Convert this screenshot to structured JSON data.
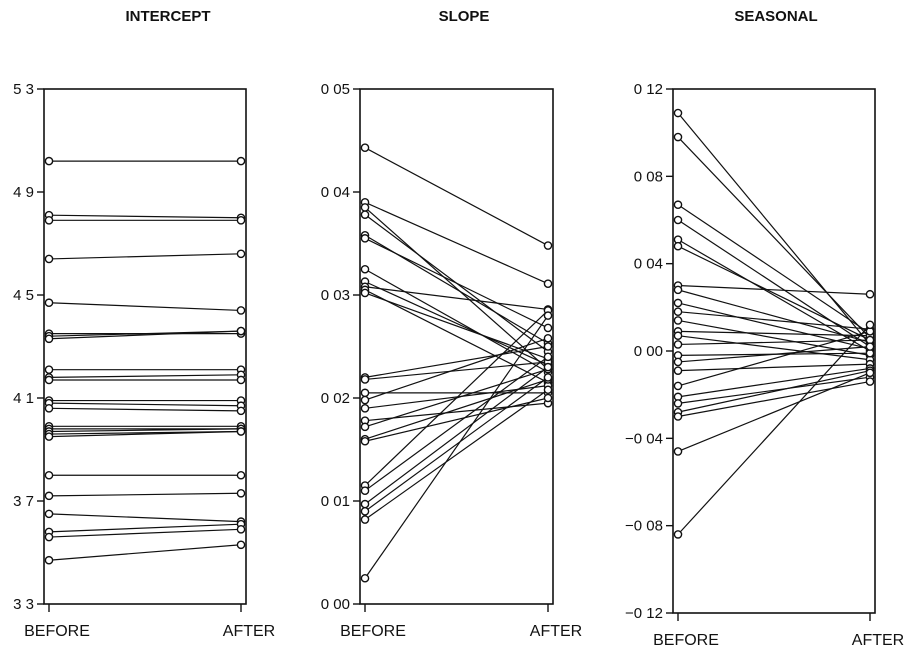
{
  "chart_data": [
    {
      "type": "line",
      "title": "INTERCEPT",
      "categories": [
        "BEFORE",
        "AFTER"
      ],
      "yticks": [
        "5 3",
        "4 9",
        "4 5",
        "4 1",
        "3 7",
        "3 3"
      ],
      "ytick_values": [
        5.3,
        4.9,
        4.5,
        4.1,
        3.7,
        3.3
      ],
      "ylim": [
        3.3,
        5.3
      ],
      "grid": false,
      "series": [
        {
          "values": [
            5.02,
            5.02
          ]
        },
        {
          "values": [
            4.81,
            4.8
          ]
        },
        {
          "values": [
            4.79,
            4.79
          ]
        },
        {
          "values": [
            4.64,
            4.66
          ]
        },
        {
          "values": [
            4.47,
            4.44
          ]
        },
        {
          "values": [
            4.35,
            4.35
          ]
        },
        {
          "values": [
            4.34,
            4.36
          ]
        },
        {
          "values": [
            4.33,
            4.36
          ]
        },
        {
          "values": [
            4.21,
            4.21
          ]
        },
        {
          "values": [
            4.18,
            4.19
          ]
        },
        {
          "values": [
            4.17,
            4.17
          ]
        },
        {
          "values": [
            4.09,
            4.09
          ]
        },
        {
          "values": [
            4.08,
            4.07
          ]
        },
        {
          "values": [
            4.06,
            4.05
          ]
        },
        {
          "values": [
            3.99,
            3.99
          ]
        },
        {
          "values": [
            3.98,
            3.98
          ]
        },
        {
          "values": [
            3.97,
            3.98
          ]
        },
        {
          "values": [
            3.96,
            3.97
          ]
        },
        {
          "values": [
            3.95,
            3.97
          ]
        },
        {
          "values": [
            3.8,
            3.8
          ]
        },
        {
          "values": [
            3.72,
            3.73
          ]
        },
        {
          "values": [
            3.65,
            3.62
          ]
        },
        {
          "values": [
            3.58,
            3.61
          ]
        },
        {
          "values": [
            3.56,
            3.59
          ]
        },
        {
          "values": [
            3.47,
            3.53
          ]
        }
      ]
    },
    {
      "type": "line",
      "title": "SLOPE",
      "categories": [
        "BEFORE",
        "AFTER"
      ],
      "yticks": [
        "0 05",
        "0 04",
        "0 03",
        "0 02",
        "0 01",
        "0 00"
      ],
      "ytick_values": [
        0.05,
        0.04,
        0.03,
        0.02,
        0.01,
        0.0
      ],
      "ylim": [
        0.0,
        0.05
      ],
      "grid": false,
      "series": [
        {
          "values": [
            0.0443,
            0.0348
          ]
        },
        {
          "values": [
            0.039,
            0.0311
          ]
        },
        {
          "values": [
            0.0385,
            0.0228
          ]
        },
        {
          "values": [
            0.0378,
            0.0245
          ]
        },
        {
          "values": [
            0.0358,
            0.0253
          ]
        },
        {
          "values": [
            0.0355,
            0.0268
          ]
        },
        {
          "values": [
            0.0325,
            0.0225
          ]
        },
        {
          "values": [
            0.0313,
            0.0232
          ]
        },
        {
          "values": [
            0.0308,
            0.0286
          ]
        },
        {
          "values": [
            0.0305,
            0.0215
          ]
        },
        {
          "values": [
            0.0302,
            0.0238
          ]
        },
        {
          "values": [
            0.022,
            0.025
          ]
        },
        {
          "values": [
            0.0218,
            0.0235
          ]
        },
        {
          "values": [
            0.0205,
            0.0205
          ]
        },
        {
          "values": [
            0.0198,
            0.0258
          ]
        },
        {
          "values": [
            0.019,
            0.0212
          ]
        },
        {
          "values": [
            0.0178,
            0.0195
          ]
        },
        {
          "values": [
            0.0172,
            0.0228
          ]
        },
        {
          "values": [
            0.016,
            0.0218
          ]
        },
        {
          "values": [
            0.0158,
            0.02
          ]
        },
        {
          "values": [
            0.0115,
            0.0285
          ]
        },
        {
          "values": [
            0.011,
            0.024
          ]
        },
        {
          "values": [
            0.0097,
            0.023
          ]
        },
        {
          "values": [
            0.009,
            0.022
          ]
        },
        {
          "values": [
            0.0082,
            0.0208
          ]
        },
        {
          "values": [
            0.0025,
            0.028
          ]
        }
      ]
    },
    {
      "type": "line",
      "title": "SEASONAL",
      "categories": [
        "BEFORE",
        "AFTER"
      ],
      "yticks": [
        "0 12",
        "0 08",
        "0 04",
        "0 00",
        "−0 04",
        "−0 08",
        "−0 12"
      ],
      "ytick_values": [
        0.12,
        0.08,
        0.04,
        0.0,
        -0.04,
        -0.08,
        -0.12
      ],
      "ylim": [
        -0.12,
        0.12
      ],
      "grid": false,
      "series": [
        {
          "values": [
            0.109,
            0.003
          ]
        },
        {
          "values": [
            0.098,
            0.006
          ]
        },
        {
          "values": [
            0.067,
            0.008
          ]
        },
        {
          "values": [
            0.06,
            0.002
          ]
        },
        {
          "values": [
            0.051,
            0.0
          ]
        },
        {
          "values": [
            0.048,
            0.005
          ]
        },
        {
          "values": [
            0.03,
            0.026
          ]
        },
        {
          "values": [
            0.028,
            0.004
          ]
        },
        {
          "values": [
            0.022,
            0.001
          ]
        },
        {
          "values": [
            0.018,
            0.01
          ]
        },
        {
          "values": [
            0.014,
            -0.002
          ]
        },
        {
          "values": [
            0.009,
            0.007
          ]
        },
        {
          "values": [
            0.007,
            -0.004
          ]
        },
        {
          "values": [
            0.003,
            0.005
          ]
        },
        {
          "values": [
            -0.002,
            -0.001
          ]
        },
        {
          "values": [
            -0.005,
            0.002
          ]
        },
        {
          "values": [
            -0.009,
            -0.006
          ]
        },
        {
          "values": [
            -0.016,
            0.009
          ]
        },
        {
          "values": [
            -0.021,
            -0.008
          ]
        },
        {
          "values": [
            -0.024,
            -0.012
          ]
        },
        {
          "values": [
            -0.028,
            -0.009
          ]
        },
        {
          "values": [
            -0.03,
            -0.014
          ]
        },
        {
          "values": [
            -0.046,
            -0.01
          ]
        },
        {
          "values": [
            -0.084,
            0.012
          ]
        }
      ]
    }
  ]
}
